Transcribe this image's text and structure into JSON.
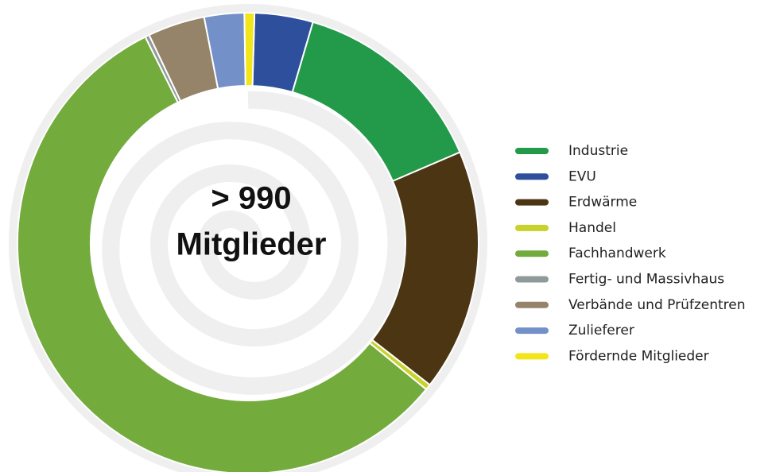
{
  "chart_data": {
    "type": "donut",
    "center_label": [
      "> 990",
      "Mitglieder"
    ],
    "categories": [
      "Industrie",
      "EVU",
      "Erdwärme",
      "Handel",
      "Fachhandwerk",
      "Fertig- und Massivhaus",
      "Verbände und Prüfzentren",
      "Zulieferer",
      "Fördernde Mitglieder"
    ],
    "values": [
      14.0,
      4.1,
      17.0,
      0.4,
      56.7,
      0.3,
      4.0,
      2.8,
      0.7
    ],
    "colors": [
      "#23994a",
      "#2e4f9c",
      "#4b3512",
      "#c8d22c",
      "#73ab3c",
      "#8f9a9a",
      "#958469",
      "#7490c8",
      "#f2e51a"
    ],
    "legend": "right"
  }
}
